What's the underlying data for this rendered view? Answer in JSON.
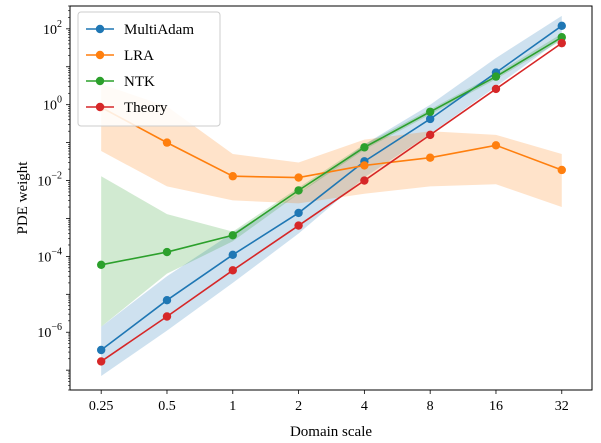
{
  "chart_data": {
    "type": "line",
    "xlabel": "Domain scale",
    "ylabel": "PDE weight",
    "xscale": "log2",
    "yscale": "log10",
    "x": [
      0.25,
      0.5,
      1,
      2,
      4,
      8,
      16,
      32
    ],
    "x_tick_labels": [
      "0.25",
      "0.5",
      "1",
      "2",
      "4",
      "8",
      "16",
      "32"
    ],
    "y_tick_exponents": [
      -6,
      -4,
      -2,
      0,
      2
    ],
    "ylim": [
      3e-08,
      400
    ],
    "legend_position": "top-left",
    "grid": false,
    "series": [
      {
        "name": "MultiAdam",
        "color": "#1f77b4",
        "values": [
          3.4e-07,
          7e-06,
          0.00011,
          0.0014,
          0.032,
          0.42,
          7,
          120
        ],
        "band_low": [
          7e-08,
          1.1e-06,
          2e-05,
          0.0004,
          0.012,
          0.17,
          3,
          55
        ],
        "band_high": [
          1.4e-06,
          3e-05,
          0.00042,
          0.0045,
          0.09,
          1.0,
          17,
          220
        ]
      },
      {
        "name": "LRA",
        "color": "#ff7f0e",
        "values": [
          0.85,
          0.1,
          0.013,
          0.012,
          0.025,
          0.04,
          0.085,
          0.019
        ],
        "band_low": [
          0.06,
          0.007,
          0.003,
          0.0025,
          0.0045,
          0.007,
          0.008,
          0.002
        ],
        "band_high": [
          3.5,
          0.9,
          0.05,
          0.03,
          0.12,
          0.2,
          0.16,
          0.05
        ]
      },
      {
        "name": "NTK",
        "color": "#2ca02c",
        "values": [
          6e-05,
          0.00013,
          0.00036,
          0.0055,
          0.075,
          0.65,
          5.5,
          60
        ],
        "band_low": [
          1.4e-06,
          3.5e-05,
          0.00025,
          0.0045,
          0.065,
          0.55,
          4.7,
          50
        ],
        "band_high": [
          0.013,
          0.0013,
          0.00045,
          0.0065,
          0.09,
          0.75,
          6.5,
          75
        ]
      },
      {
        "name": "Theory",
        "color": "#d62728",
        "values": [
          1.7e-07,
          2.6e-06,
          4.3e-05,
          0.00065,
          0.01,
          0.16,
          2.6,
          42
        ]
      }
    ]
  }
}
